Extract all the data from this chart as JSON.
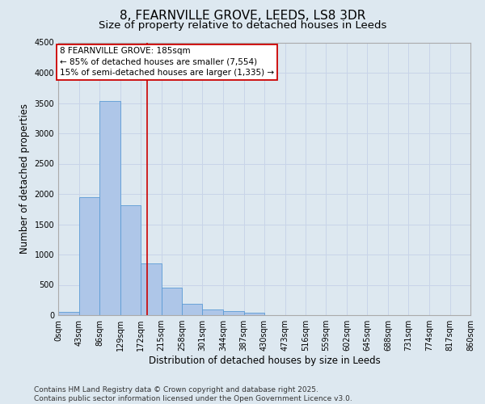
{
  "title": "8, FEARNVILLE GROVE, LEEDS, LS8 3DR",
  "subtitle": "Size of property relative to detached houses in Leeds",
  "xlabel": "Distribution of detached houses by size in Leeds",
  "ylabel": "Number of detached properties",
  "bin_edges": [
    0,
    43,
    86,
    129,
    172,
    215,
    258,
    301,
    344,
    387,
    430,
    473,
    516,
    559,
    602,
    645,
    688,
    731,
    774,
    817,
    860
  ],
  "bar_heights": [
    55,
    1950,
    3530,
    1810,
    860,
    450,
    185,
    100,
    70,
    45,
    0,
    0,
    0,
    0,
    0,
    0,
    0,
    0,
    0,
    0
  ],
  "bar_color": "#aec6e8",
  "bar_edge_color": "#5b9bd5",
  "property_size": 185,
  "vline_color": "#cc0000",
  "annotation_line1": "8 FEARNVILLE GROVE: 185sqm",
  "annotation_line2": "← 85% of detached houses are smaller (7,554)",
  "annotation_line3": "15% of semi-detached houses are larger (1,335) →",
  "annotation_box_color": "#cc0000",
  "ylim": [
    0,
    4500
  ],
  "yticks": [
    0,
    500,
    1000,
    1500,
    2000,
    2500,
    3000,
    3500,
    4000,
    4500
  ],
  "grid_color": "#c8d4e8",
  "background_color": "#dde8f0",
  "fig_background_color": "#dde8f0",
  "footer_line1": "Contains HM Land Registry data © Crown copyright and database right 2025.",
  "footer_line2": "Contains public sector information licensed under the Open Government Licence v3.0.",
  "title_fontsize": 11,
  "subtitle_fontsize": 9.5,
  "tick_label_fontsize": 7,
  "ylabel_fontsize": 8.5,
  "xlabel_fontsize": 8.5,
  "annotation_fontsize": 7.5,
  "footer_fontsize": 6.5
}
